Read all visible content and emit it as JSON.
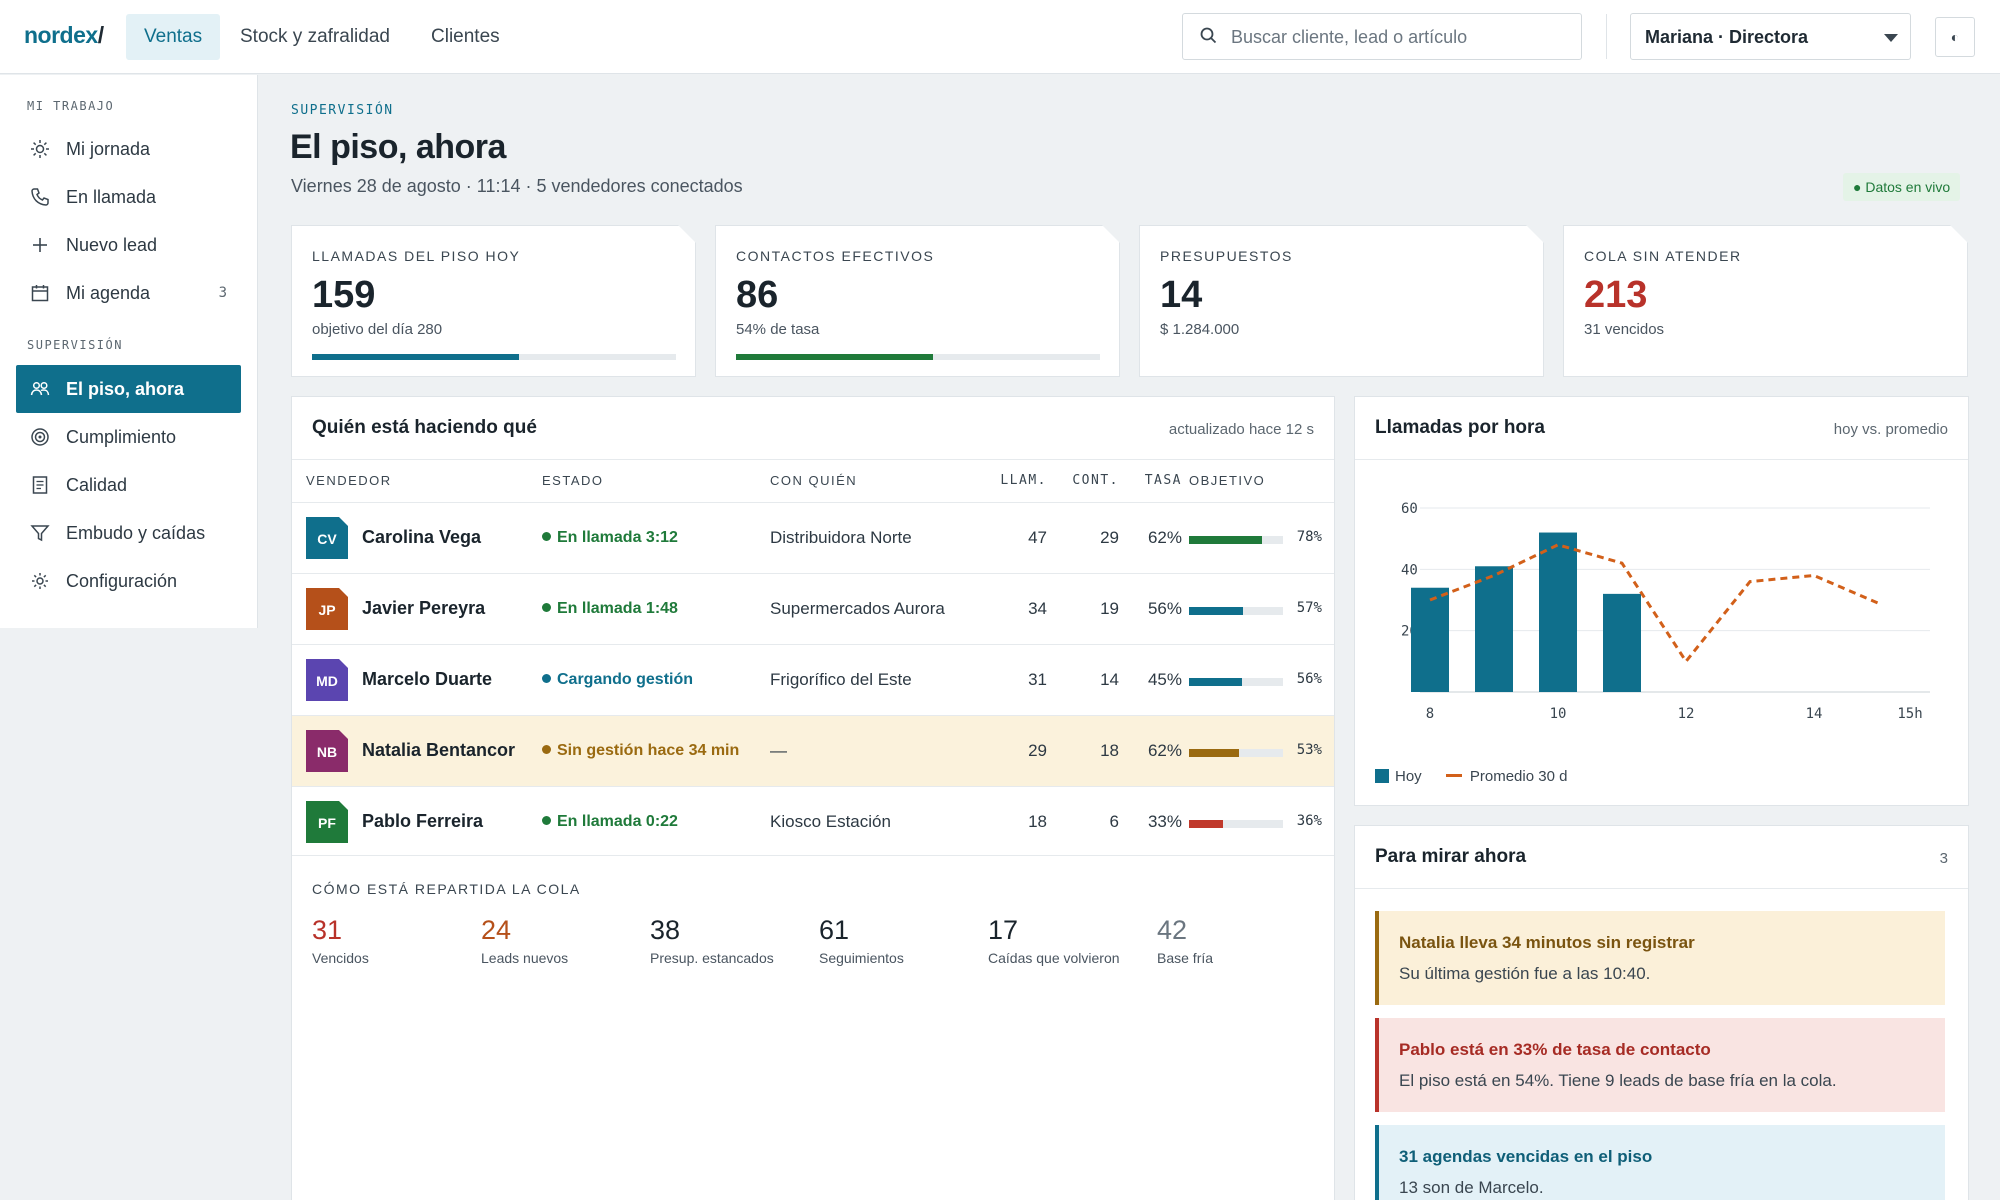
{
  "app": {
    "logo": "nordex",
    "logo_slash": "/"
  },
  "nav": {
    "tabs": [
      {
        "label": "Ventas",
        "active": true
      },
      {
        "label": "Stock y zafralidad",
        "active": false
      },
      {
        "label": "Clientes",
        "active": false
      }
    ]
  },
  "search": {
    "placeholder": "Buscar cliente, lead o artículo"
  },
  "user": {
    "label": "Mariana · Directora"
  },
  "theme": {
    "glyph": "◐"
  },
  "sidebar": {
    "section_mine": "MI TRABAJO",
    "mine": [
      {
        "label": "Mi jornada",
        "icon": "sun-icon"
      },
      {
        "label": "En llamada",
        "icon": "phone-icon"
      },
      {
        "label": "Nuevo lead",
        "icon": "plus-icon"
      },
      {
        "label": "Mi agenda",
        "icon": "calendar-icon",
        "count": "3"
      }
    ],
    "section_sup": "SUPERVISIÓN",
    "sup": [
      {
        "label": "El piso, ahora",
        "icon": "users-icon",
        "active": true
      },
      {
        "label": "Cumplimiento",
        "icon": "target-icon"
      },
      {
        "label": "Calidad",
        "icon": "document-icon"
      },
      {
        "label": "Embudo y caídas",
        "icon": "filter-icon"
      },
      {
        "label": "Configuración",
        "icon": "gear-icon"
      }
    ]
  },
  "header": {
    "kicker": "SUPERVISIÓN",
    "title": "El piso, ahora",
    "subtitle": "Viernes 28 de agosto · 11:14 · 5 vendedores conectados",
    "live": "● Datos en vivo"
  },
  "kpis": [
    {
      "label": "LLAMADAS DEL PISO HOY",
      "value": "159",
      "sub": "objetivo del día 280",
      "progress": 0.57,
      "color": "#0f6f8c",
      "value_color": "#1a242c"
    },
    {
      "label": "CONTACTOS EFECTIVOS",
      "value": "86",
      "sub": "54% de tasa",
      "progress": 0.54,
      "color": "#1f7a3a",
      "value_color": "#1a242c"
    },
    {
      "label": "PRESUPUESTOS",
      "value": "14",
      "sub": "$ 1.284.000",
      "progress": null,
      "color": "",
      "value_color": "#1a242c"
    },
    {
      "label": "COLA SIN ATENDER",
      "value": "213",
      "sub": "31 vencidos",
      "progress": null,
      "color": "",
      "value_color": "#b8322a"
    }
  ],
  "team": {
    "title": "Quién está haciendo qué",
    "updated": "actualizado hace 12 s",
    "columns": [
      "VENDEDOR",
      "ESTADO",
      "CON QUIÉN",
      "LLAM.",
      "CONT.",
      "TASA",
      "OBJETIVO"
    ],
    "rows": [
      {
        "initials": "CV",
        "name": "Carolina Vega",
        "avatar_color": "#0f6f8c",
        "estado": "En llamada 3:12",
        "estado_color": "#1f7a3a",
        "con_quien": "Distribuidora Norte",
        "llam": "47",
        "cont": "29",
        "tasa": "62%",
        "objetivo_pct": "78%",
        "objetivo": 0.78,
        "bar_color": "#1f7a3a",
        "warn": false
      },
      {
        "initials": "JP",
        "name": "Javier Pereyra",
        "avatar_color": "#b5501a",
        "estado": "En llamada 1:48",
        "estado_color": "#1f7a3a",
        "con_quien": "Supermercados Aurora",
        "llam": "34",
        "cont": "19",
        "tasa": "56%",
        "objetivo_pct": "57%",
        "objetivo": 0.57,
        "bar_color": "#0f6f8c",
        "warn": false
      },
      {
        "initials": "MD",
        "name": "Marcelo Duarte",
        "avatar_color": "#5b45b0",
        "estado": "Cargando gestión",
        "estado_color": "#0f6f8c",
        "con_quien": "Frigorífico del Este",
        "llam": "31",
        "cont": "14",
        "tasa": "45%",
        "objetivo_pct": "56%",
        "objetivo": 0.56,
        "bar_color": "#0f6f8c",
        "warn": false
      },
      {
        "initials": "NB",
        "name": "Natalia Bentancor",
        "avatar_color": "#8a2b6a",
        "estado": "Sin gestión hace 34 min",
        "estado_color": "#9a6a10",
        "con_quien": "—",
        "llam": "29",
        "cont": "18",
        "tasa": "62%",
        "objetivo_pct": "53%",
        "objetivo": 0.53,
        "bar_color": "#9a6a10",
        "warn": true
      },
      {
        "initials": "PF",
        "name": "Pablo Ferreira",
        "avatar_color": "#1f7a3a",
        "estado": "En llamada 0:22",
        "estado_color": "#1f7a3a",
        "con_quien": "Kiosco Estación",
        "llam": "18",
        "cont": "6",
        "tasa": "33%",
        "objetivo_pct": "36%",
        "objetivo": 0.36,
        "bar_color": "#c0392b",
        "warn": false
      }
    ]
  },
  "cola": {
    "title": "CÓMO ESTÁ REPARTIDA LA COLA",
    "items": [
      {
        "value": "31",
        "label": "Vencidos",
        "color": "#b8322a"
      },
      {
        "value": "24",
        "label": "Leads nuevos",
        "color": "#b5501a"
      },
      {
        "value": "38",
        "label": "Presup. estancados",
        "color": "#1a242c"
      },
      {
        "value": "61",
        "label": "Seguimientos",
        "color": "#1a242c"
      },
      {
        "value": "17",
        "label": "Caídas que volvieron",
        "color": "#1a242c"
      },
      {
        "value": "42",
        "label": "Base fría",
        "color": "#6b7680"
      }
    ]
  },
  "chart_panel": {
    "title": "Llamadas por hora",
    "subtitle": "hoy vs. promedio"
  },
  "chart_data": {
    "type": "bar",
    "x": [
      8,
      9,
      10,
      11,
      12,
      13,
      14,
      15
    ],
    "x_tick_labels": [
      "8",
      "10",
      "12",
      "14",
      "15h"
    ],
    "x_tick_values": [
      8,
      10,
      12,
      14,
      15.5
    ],
    "ylim": [
      0,
      60
    ],
    "y_ticks": [
      20,
      40,
      60
    ],
    "series": [
      {
        "name": "Hoy",
        "type": "bar",
        "color": "#0f6f8c",
        "x": [
          8,
          9,
          10,
          11
        ],
        "values": [
          34,
          41,
          52,
          32
        ]
      },
      {
        "name": "Promedio 30 d",
        "type": "line",
        "dashed": true,
        "color": "#d2601a",
        "x": [
          8,
          9,
          10,
          11,
          12,
          13,
          14,
          15
        ],
        "values": [
          30,
          38,
          48,
          42,
          10,
          36,
          38,
          29
        ]
      }
    ],
    "grid": true,
    "legend": "bottom-left"
  },
  "alerts": {
    "title": "Para mirar ahora",
    "count": "3",
    "items": [
      {
        "title": "Natalia lleva 34 minutos sin registrar",
        "body": "Su última gestión fue a las 10:40.",
        "bg": "#fbf0d9",
        "border": "#9a6a10",
        "title_color": "#7a5410"
      },
      {
        "title": "Pablo está en 33% de tasa de contacto",
        "body": "El piso está en 54%. Tiene 9 leads de base fría en la cola.",
        "bg": "#f9e4e2",
        "border": "#b8322a",
        "title_color": "#a62b24"
      },
      {
        "title": "31 agendas vencidas en el piso",
        "body": "13 son de Marcelo.",
        "bg": "#e3f1f7",
        "border": "#0f6f8c",
        "title_color": "#0f5f78"
      }
    ]
  }
}
